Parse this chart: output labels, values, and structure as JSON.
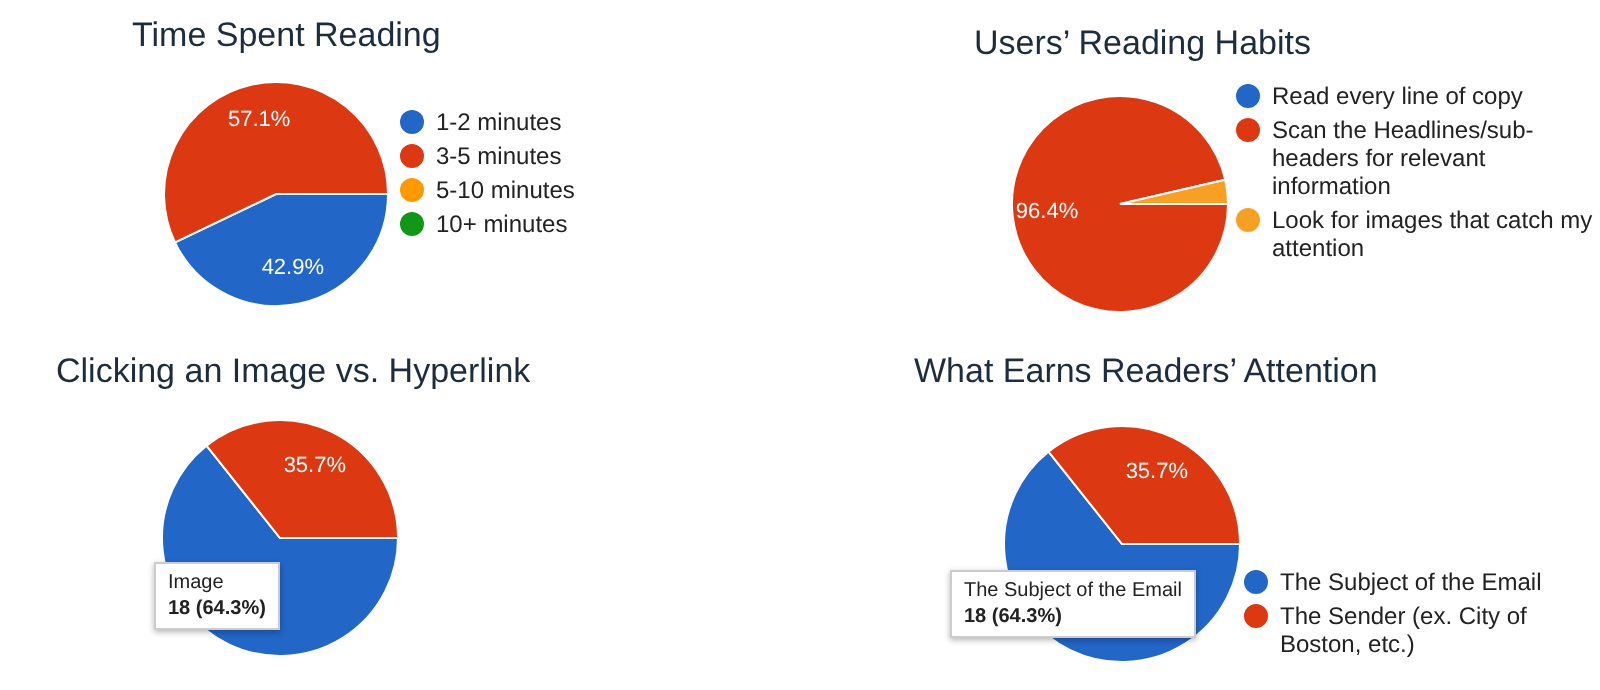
{
  "chart_data": [
    {
      "type": "pie",
      "title": "Time Spent Reading",
      "categories": [
        "1-2 minutes",
        "3-5 minutes",
        "5-10 minutes",
        "10+ minutes"
      ],
      "values": [
        42.9,
        57.1,
        0,
        0
      ],
      "colors": [
        "#2266c8",
        "#dc3912",
        "#ff9900",
        "#109618"
      ],
      "value_labels": [
        "42.9%",
        "57.1%",
        null,
        null
      ],
      "legend": "right"
    },
    {
      "type": "pie",
      "title": "Users’ Reading Habits",
      "categories": [
        "Read every line of copy",
        "Scan the Headlines/sub-headers for relevant information",
        "Look for images that catch my attention"
      ],
      "values": [
        0,
        96.4,
        3.6
      ],
      "colors": [
        "#2266c8",
        "#dc3912",
        "#f7a023"
      ],
      "value_labels": [
        null,
        "96.4%",
        null
      ],
      "legend": "right"
    },
    {
      "type": "pie",
      "title": "Clicking an Image vs. Hyperlink",
      "categories": [
        null,
        null
      ],
      "values": [
        64.3,
        35.7
      ],
      "colors": [
        "#2266c8",
        "#dc3912"
      ],
      "value_labels": [
        null,
        "35.7%"
      ],
      "legend": false,
      "annotations": [
        "Image\n18 (64.3%)"
      ]
    },
    {
      "type": "pie",
      "title": "What Earns Readers’ Attention",
      "categories": [
        "The Subject of the Email",
        "The Sender (ex. City of Boston, etc.)"
      ],
      "values": [
        64.3,
        35.7
      ],
      "colors": [
        "#2266c8",
        "#dc3912"
      ],
      "value_labels": [
        null,
        "35.7%"
      ],
      "legend": "bottom right",
      "annotations": [
        "The Subject of the Email\n18 (64.3%)"
      ]
    }
  ]
}
